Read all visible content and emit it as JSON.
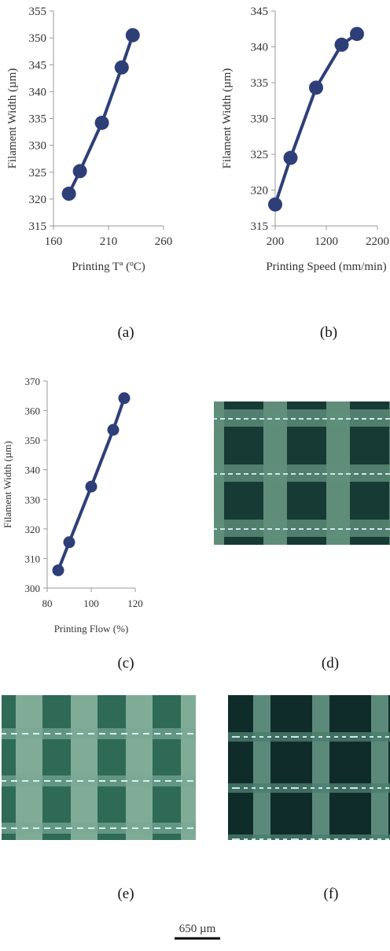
{
  "chart_data": [
    {
      "type": "line",
      "x_label": "Printing Tª (ºC)",
      "y_label": "Filament Width (µm)",
      "series": [
        {
          "color": "#2e3f78",
          "x": [
            174,
            184,
            204,
            222,
            232
          ],
          "values": [
            321,
            325.2,
            334.2,
            344.5,
            350.5
          ]
        }
      ],
      "xlim": [
        160,
        260
      ],
      "xticks": [
        160,
        210,
        260
      ],
      "ylim": [
        315,
        355
      ],
      "yticks": [
        315,
        320,
        325,
        330,
        335,
        340,
        345,
        350,
        355
      ]
    },
    {
      "type": "line",
      "x_label": "Printing Speed (mm/min)",
      "y_label": "Filament Width (µm)",
      "series": [
        {
          "color": "#2e3f78",
          "x": [
            200,
            500,
            1000,
            1500,
            1800
          ],
          "values": [
            318,
            324.5,
            334.3,
            340.3,
            341.8
          ]
        }
      ],
      "xlim": [
        200,
        2200
      ],
      "xticks": [
        200,
        1200,
        2200
      ],
      "ylim": [
        315,
        345
      ],
      "yticks": [
        315,
        320,
        325,
        330,
        335,
        340,
        345
      ]
    },
    {
      "type": "line",
      "x_label": "Printing Flow (%)",
      "y_label": "Filament Width (µm)",
      "series": [
        {
          "color": "#2e3f78",
          "x": [
            85,
            90,
            100,
            110,
            115
          ],
          "values": [
            306,
            315.5,
            334.3,
            353.5,
            364.2
          ]
        }
      ],
      "xlim": [
        80,
        120
      ],
      "xticks": [
        80,
        100,
        120
      ],
      "ylim": [
        300,
        370
      ],
      "yticks": [
        300,
        310,
        320,
        330,
        340,
        350,
        360,
        370
      ]
    }
  ],
  "panel_labels": [
    "(a)",
    "(b)",
    "(c)",
    "(d)",
    "(e)",
    "(f)"
  ],
  "scale_bar": "650 µm"
}
